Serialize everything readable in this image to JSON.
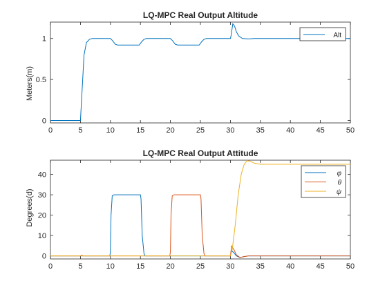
{
  "chart_data": [
    {
      "type": "line",
      "title": "LQ-MPC Real Output Altitude",
      "xlabel": "",
      "ylabel": "Meters(m)",
      "xlim": [
        0,
        50
      ],
      "ylim": [
        -0.03,
        1.2
      ],
      "xticks": [
        0,
        5,
        10,
        15,
        20,
        25,
        30,
        35,
        40,
        45,
        50
      ],
      "yticks": [
        0,
        0.5,
        1
      ],
      "ytick_labels": [
        "0",
        "0.5",
        "1"
      ],
      "grid": false,
      "legend": "top-right",
      "series": [
        {
          "name": "Alt",
          "color": "#0072BD",
          "x": [
            0,
            4.9,
            5.0,
            5.3,
            5.6,
            6.0,
            6.5,
            7.0,
            8,
            10,
            10.4,
            10.8,
            11.2,
            12,
            14.8,
            15.2,
            15.6,
            16,
            18,
            20,
            20.4,
            20.8,
            21.2,
            22,
            24.8,
            25.2,
            25.6,
            26,
            28,
            30,
            30.1,
            30.4,
            30.7,
            31,
            31.4,
            32,
            33,
            34,
            36,
            40,
            45,
            50
          ],
          "y": [
            0,
            0,
            0,
            0.4,
            0.8,
            0.95,
            0.99,
            1.0,
            1.0,
            1.0,
            0.97,
            0.93,
            0.92,
            0.92,
            0.92,
            0.96,
            0.99,
            1.0,
            1.0,
            1.0,
            0.97,
            0.93,
            0.92,
            0.92,
            0.92,
            0.96,
            0.99,
            1.0,
            1.0,
            1.0,
            1.03,
            1.18,
            1.15,
            1.08,
            1.03,
            1.0,
            0.995,
            1.0,
            1.0,
            1.0,
            1.0,
            1.0
          ]
        }
      ]
    },
    {
      "type": "line",
      "title": "LQ-MPC Real Output Attitude",
      "xlabel": "",
      "ylabel": "Degrees(d)",
      "xlim": [
        0,
        50
      ],
      "ylim": [
        -1.5,
        47
      ],
      "xticks": [
        0,
        5,
        10,
        15,
        20,
        25,
        30,
        35,
        40,
        45,
        50
      ],
      "yticks": [
        0,
        10,
        20,
        30,
        40
      ],
      "ytick_labels": [
        "0",
        "10",
        "20",
        "30",
        "40"
      ],
      "grid": false,
      "legend": "top-right",
      "series": [
        {
          "name": "φ",
          "color": "#0072BD",
          "x": [
            0,
            9.9,
            10.0,
            10.1,
            10.3,
            10.6,
            15.0,
            15.1,
            15.3,
            15.6,
            15.8,
            30,
            30.2,
            30.6,
            31,
            31.6,
            32.2,
            33,
            50
          ],
          "y": [
            0,
            0,
            2,
            20,
            29.5,
            30,
            30,
            28,
            10,
            1,
            0,
            0,
            2.5,
            1.5,
            0,
            -0.8,
            -0.4,
            0,
            0
          ]
        },
        {
          "name": "θ",
          "color": "#D95319",
          "x": [
            0,
            5.0,
            5.2,
            5.5,
            19.9,
            20.0,
            20.1,
            20.3,
            20.6,
            25.0,
            25.1,
            25.3,
            25.6,
            25.8,
            30,
            30.2,
            30.6,
            31,
            31.6,
            32.2,
            33,
            50
          ],
          "y": [
            0,
            0,
            0.3,
            0,
            0,
            2,
            20,
            29.5,
            30,
            30,
            28,
            10,
            1,
            0,
            0,
            4.8,
            3,
            0.5,
            -0.8,
            -0.4,
            0,
            0
          ]
        },
        {
          "name": "ψ",
          "color": "#EDB120",
          "x": [
            0,
            30,
            30.3,
            30.8,
            31.3,
            31.8,
            32.3,
            32.8,
            33.3,
            34,
            35,
            50
          ],
          "y": [
            0,
            0,
            3,
            15,
            30,
            40,
            45,
            46.8,
            46.5,
            45.5,
            45,
            45
          ]
        }
      ]
    }
  ]
}
